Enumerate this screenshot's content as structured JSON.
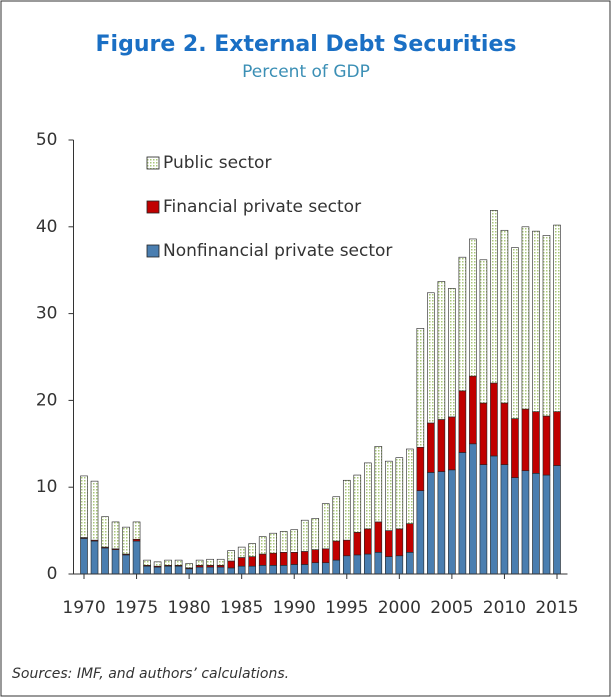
{
  "chart_data": {
    "type": "stacked_bar",
    "title": "Figure 2. External Debt Securities",
    "subtitle": "Percent of GDP",
    "x": [
      1970,
      1971,
      1972,
      1973,
      1974,
      1975,
      1976,
      1977,
      1978,
      1979,
      1980,
      1981,
      1982,
      1983,
      1984,
      1985,
      1986,
      1987,
      1988,
      1989,
      1990,
      1991,
      1992,
      1993,
      1994,
      1995,
      1996,
      1997,
      1998,
      1999,
      2000,
      2001,
      2002,
      2003,
      2004,
      2005,
      2006,
      2007,
      2008,
      2009,
      2010,
      2011,
      2012,
      2013,
      2014,
      2015
    ],
    "series": [
      {
        "name": "Nonfinancial private sector",
        "color": "#4a7eb0",
        "values": [
          4.1,
          3.8,
          3.0,
          2.8,
          2.2,
          3.8,
          0.9,
          0.8,
          0.9,
          0.9,
          0.6,
          0.8,
          0.8,
          0.8,
          0.7,
          0.9,
          0.9,
          1.0,
          1.0,
          1.0,
          1.1,
          1.1,
          1.3,
          1.3,
          1.6,
          2.1,
          2.2,
          2.3,
          2.5,
          2.0,
          2.1,
          2.5,
          9.6,
          11.7,
          11.8,
          12.0,
          14.0,
          15.0,
          12.6,
          13.6,
          12.6,
          11.1,
          11.9,
          11.6,
          11.4,
          12.5
        ]
      },
      {
        "name": "Financial private sector",
        "color": "#c00000",
        "values": [
          0.1,
          0.1,
          0.1,
          0.1,
          0.1,
          0.2,
          0.1,
          0.1,
          0.1,
          0.1,
          0.1,
          0.2,
          0.2,
          0.2,
          0.8,
          1.0,
          1.1,
          1.3,
          1.4,
          1.5,
          1.4,
          1.5,
          1.5,
          1.6,
          2.2,
          1.8,
          2.6,
          2.9,
          3.5,
          3.0,
          3.1,
          3.3,
          5.0,
          5.7,
          6.0,
          6.1,
          7.1,
          7.8,
          7.1,
          8.4,
          7.1,
          6.8,
          7.1,
          7.1,
          6.8,
          6.2
        ]
      },
      {
        "name": "Public sector",
        "color": "#a9c77a",
        "values": [
          7.1,
          6.8,
          3.5,
          3.1,
          3.1,
          2.0,
          0.6,
          0.5,
          0.6,
          0.6,
          0.5,
          0.6,
          0.7,
          0.7,
          1.2,
          1.2,
          1.5,
          2.0,
          2.3,
          2.4,
          2.6,
          3.6,
          3.6,
          5.2,
          5.1,
          6.9,
          6.6,
          7.6,
          8.7,
          8.0,
          8.2,
          8.6,
          13.7,
          15.0,
          15.9,
          14.8,
          15.4,
          15.8,
          16.5,
          19.9,
          19.9,
          19.7,
          21.0,
          20.8,
          20.8,
          21.5
        ]
      }
    ],
    "xlim": [
      1969,
      2016
    ],
    "xticks": [
      1970,
      1975,
      1980,
      1985,
      1990,
      1995,
      2000,
      2005,
      2010,
      2015
    ],
    "ylim": [
      0,
      50
    ],
    "yticks": [
      0,
      10,
      20,
      30,
      40,
      50
    ],
    "grid": false,
    "legend": "upper left",
    "note": "Sources: IMF, and authors’ calculations."
  }
}
